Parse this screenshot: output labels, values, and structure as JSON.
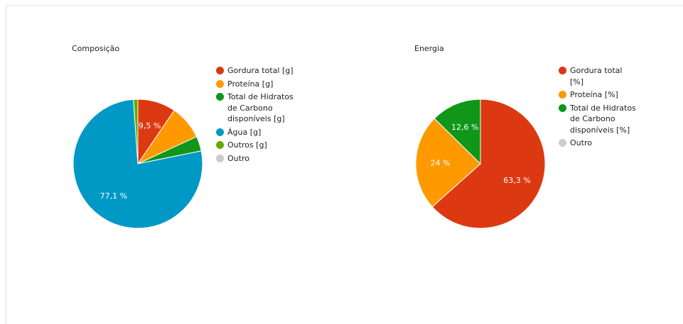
{
  "chart_data": [
    {
      "type": "pie",
      "title": "Composição",
      "series": [
        {
          "name": "Gordura total [g]",
          "value": 9.5,
          "color": "#dc3912",
          "label": "9,5 %"
        },
        {
          "name": "Proteína [g]",
          "value": 8.6,
          "color": "#ff9900",
          "label": ""
        },
        {
          "name": "Total de Hidratos de Carbono disponíveis [g]",
          "value": 3.7,
          "color": "#109618",
          "label": ""
        },
        {
          "name": "Água [g]",
          "value": 77.1,
          "color": "#0099c6",
          "label": "77,1 %"
        },
        {
          "name": "Outros [g]",
          "value": 1.1,
          "color": "#66aa00",
          "label": ""
        },
        {
          "name": "Outro",
          "value": 0,
          "color": "#cccccc",
          "label": ""
        }
      ]
    },
    {
      "type": "pie",
      "title": "Energia",
      "series": [
        {
          "name": "Gordura total [%]",
          "value": 63.3,
          "color": "#dc3912",
          "label": "63,3 %"
        },
        {
          "name": "Proteína [%]",
          "value": 24,
          "color": "#ff9900",
          "label": "24 %"
        },
        {
          "name": "Total de Hidratos de Carbono disponíveis [%]",
          "value": 12.6,
          "color": "#109618",
          "label": "12,6 %"
        },
        {
          "name": "Outro",
          "value": 0,
          "color": "#cccccc",
          "label": ""
        }
      ]
    }
  ]
}
